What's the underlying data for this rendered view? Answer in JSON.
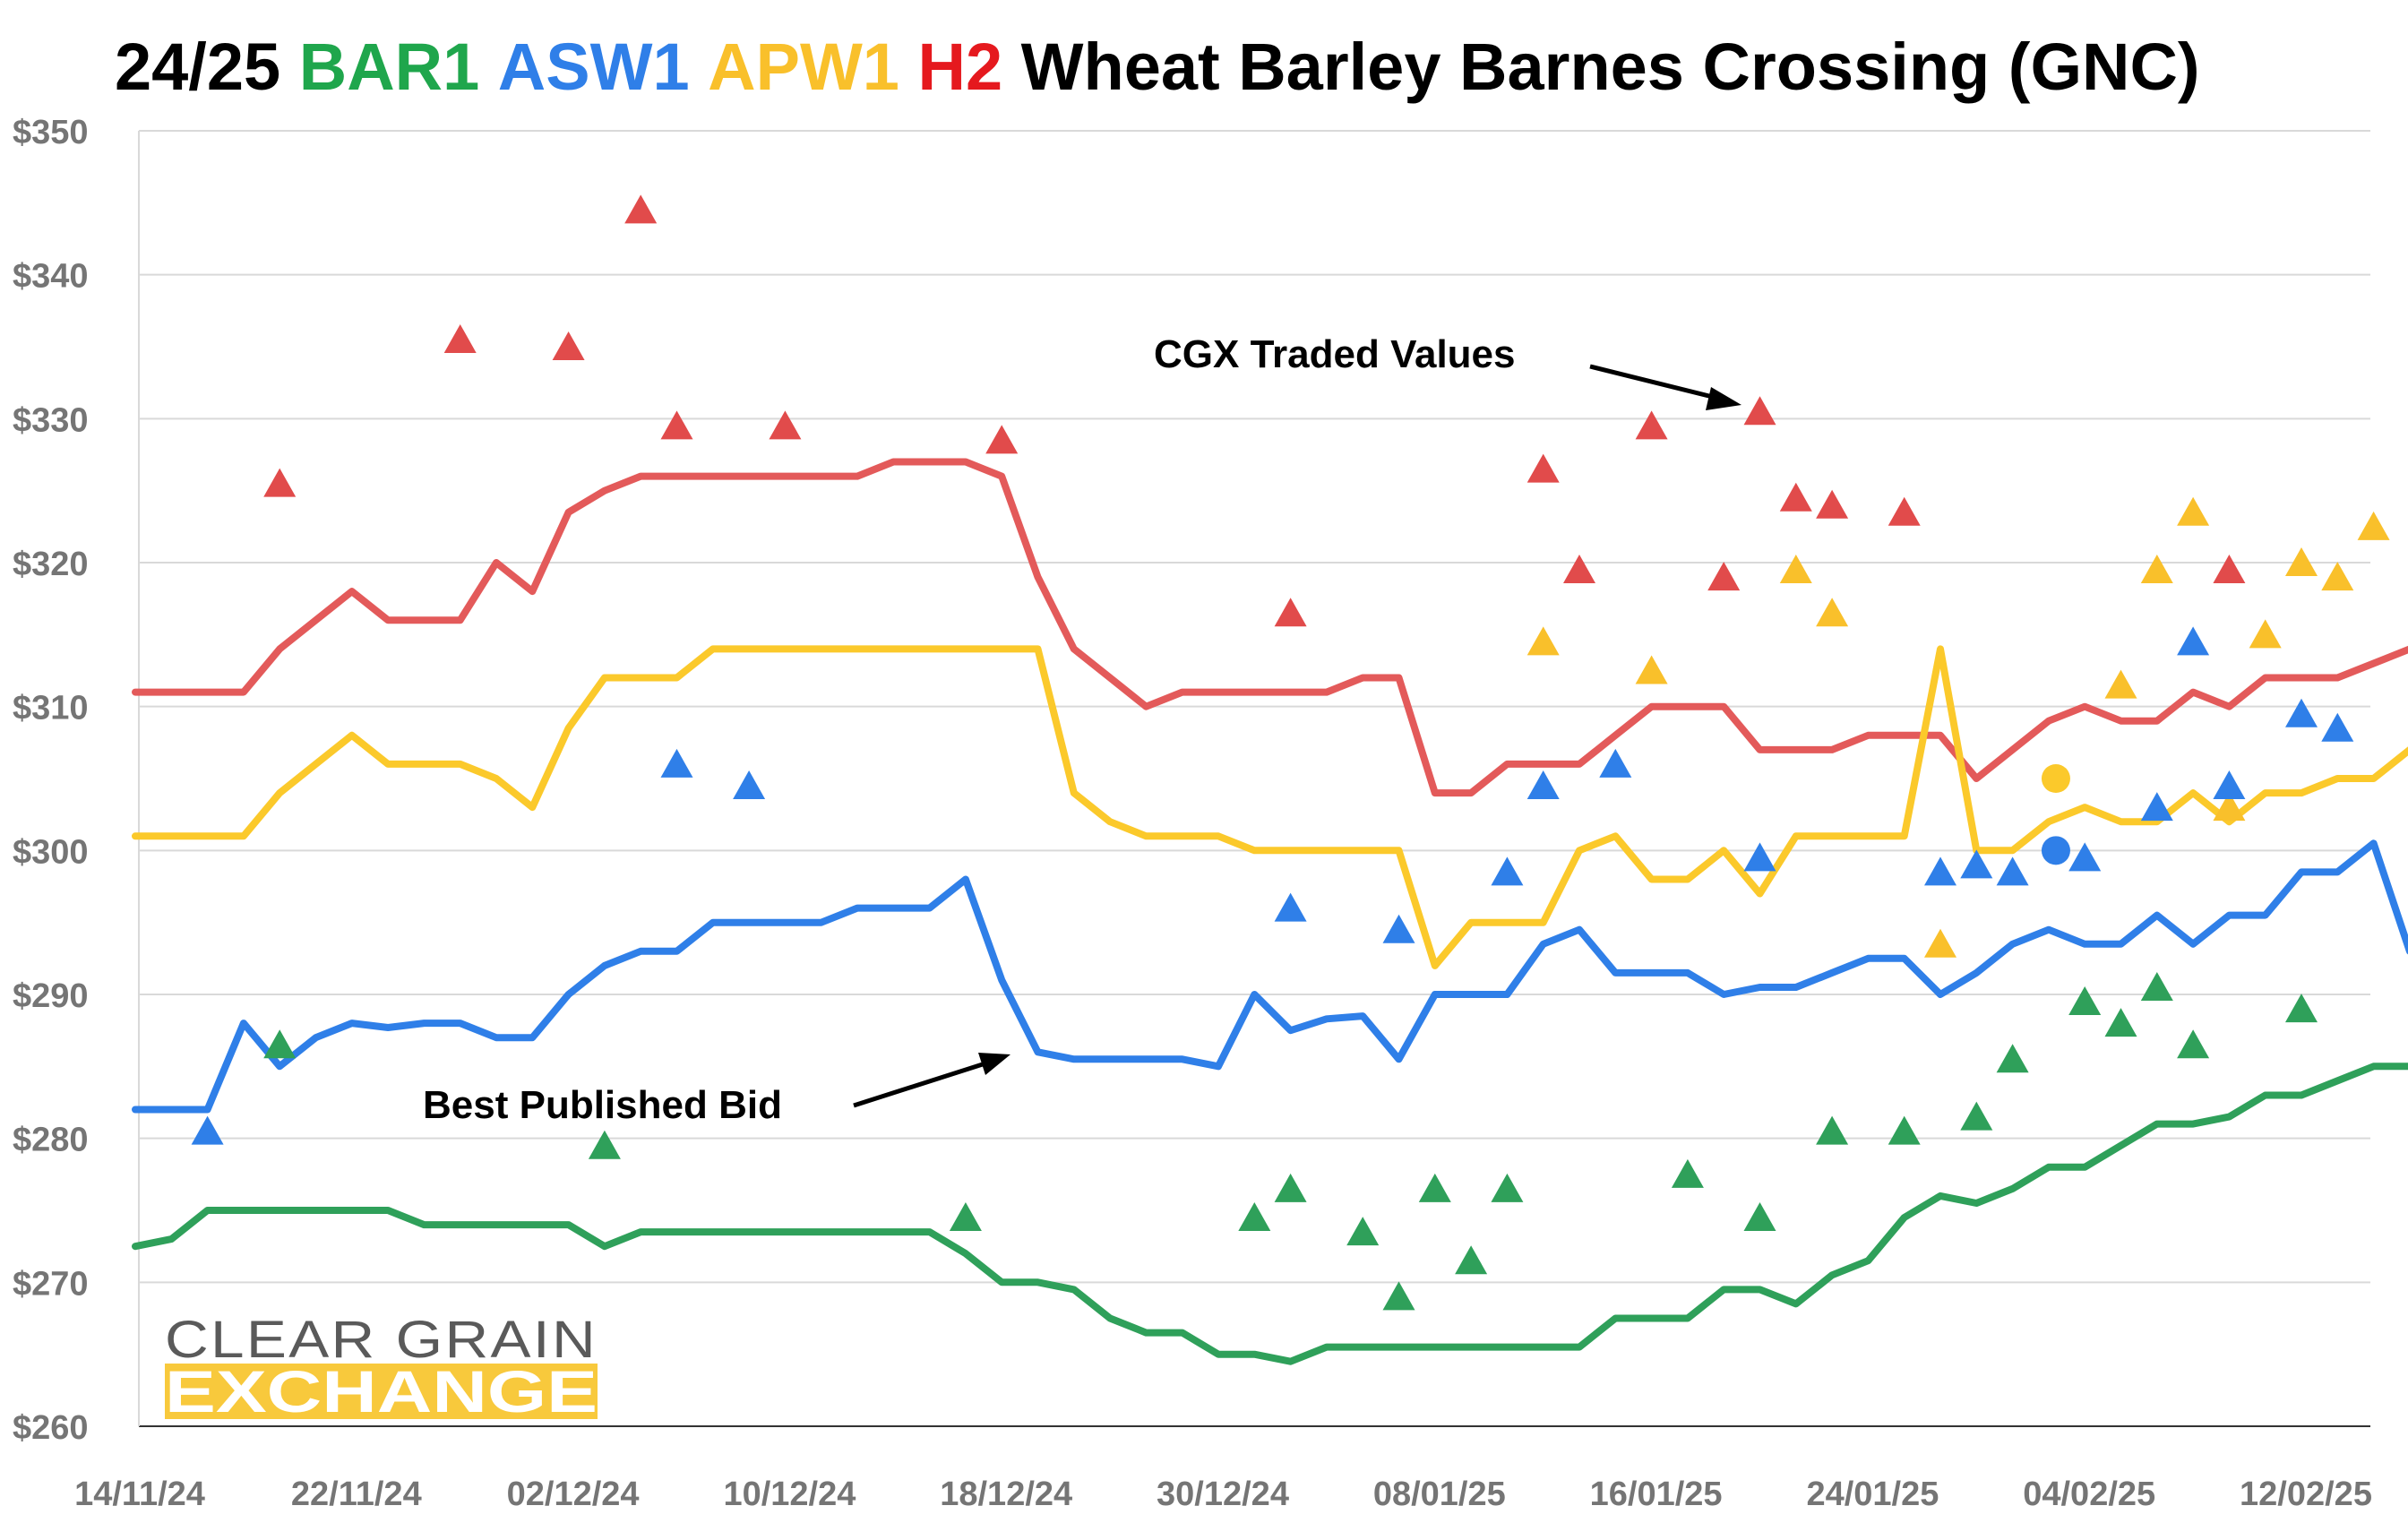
{
  "chart_data": {
    "type": "line",
    "title_parts": [
      {
        "text": "24/25 ",
        "color": "#000000"
      },
      {
        "text": "BAR1 ",
        "color": "#1fa64c"
      },
      {
        "text": "ASW1 ",
        "color": "#2f7fe8"
      },
      {
        "text": "APW1 ",
        "color": "#f9c02b"
      },
      {
        "text": "H2 ",
        "color": "#e5191e"
      },
      {
        "text": "Wheat Barley Barnes Crossing (GNC)",
        "color": "#000000"
      }
    ],
    "y_axis": {
      "min": 260,
      "max": 350,
      "step": 10,
      "tick_labels": [
        "$260",
        "$270",
        "$280",
        "$290",
        "$300",
        "$310",
        "$320",
        "$330",
        "$340",
        "$350"
      ],
      "grid": true
    },
    "x_axis": {
      "start": "14/11/24",
      "end": "14/02/25",
      "tick_labels": [
        "14/11/24",
        "22/11/24",
        "02/12/24",
        "10/12/24",
        "18/12/24",
        "30/12/24",
        "08/01/25",
        "16/01/25",
        "24/01/25",
        "04/02/25",
        "12/02/25"
      ],
      "tick_positions": [
        0,
        6,
        12,
        18,
        24,
        30,
        36,
        42,
        48,
        54,
        60
      ]
    },
    "series": [
      {
        "name": "H2",
        "color": "#e35a5a",
        "values": [
          311,
          311,
          311,
          311,
          314,
          316,
          318,
          316,
          316,
          316,
          320,
          318,
          323.5,
          325,
          326,
          326,
          326,
          326,
          326,
          326,
          326,
          327,
          327,
          327,
          326,
          319,
          314,
          312,
          310,
          311,
          311,
          311,
          311,
          311,
          312,
          312,
          304,
          304,
          306,
          306,
          306,
          308,
          310,
          310,
          310,
          307,
          307,
          307,
          308,
          308,
          308,
          305,
          307,
          309,
          310,
          309,
          309,
          311,
          310,
          312,
          312,
          312,
          313,
          314,
          313
        ]
      },
      {
        "name": "APW1",
        "color": "#fbc92b",
        "values": [
          301,
          301,
          301,
          301,
          304,
          306,
          308,
          306,
          306,
          306,
          305,
          303,
          308.5,
          312,
          312,
          312,
          314,
          314,
          314,
          314,
          314,
          314,
          314,
          314,
          314,
          314,
          304,
          302,
          301,
          301,
          301,
          300,
          300,
          300,
          300,
          300,
          292,
          295,
          295,
          295,
          300,
          301,
          298,
          298,
          300,
          297,
          301,
          301,
          301,
          301,
          314,
          300,
          300,
          302,
          303,
          302,
          302,
          304,
          302,
          304,
          304,
          305,
          305,
          307,
          303
        ]
      },
      {
        "name": "ASW1",
        "color": "#2f7fe8",
        "values": [
          282,
          282,
          282,
          288,
          285,
          287,
          288,
          287.7,
          288,
          288,
          287,
          287,
          290,
          292,
          293,
          293,
          295,
          295,
          295,
          295,
          296,
          296,
          296,
          298,
          291,
          286,
          285.5,
          285.5,
          285.5,
          285.5,
          285,
          290,
          287.5,
          288.3,
          288.5,
          285.5,
          290,
          290,
          290,
          293.5,
          294.5,
          291.5,
          291.5,
          291.5,
          290,
          290.5,
          290.5,
          291.5,
          292.5,
          292.5,
          290,
          291.5,
          293.5,
          294.5,
          293.5,
          293.5,
          295.5,
          293.5,
          295.5,
          295.5,
          298.5,
          298.5,
          300.5,
          293
        ]
      },
      {
        "name": "BAR1",
        "color": "#2fa05a",
        "values": [
          272.5,
          273,
          275,
          275,
          275,
          275,
          275,
          275,
          274,
          274,
          274,
          274,
          274,
          272.5,
          273.5,
          273.5,
          273.5,
          273.5,
          273.5,
          273.5,
          273.5,
          273.5,
          273.5,
          272,
          270,
          270,
          269.5,
          267.5,
          266.5,
          266.5,
          265,
          265,
          264.5,
          265.5,
          265.5,
          265.5,
          265.5,
          265.5,
          265.5,
          265.5,
          265.5,
          267.5,
          267.5,
          267.5,
          269.5,
          269.5,
          268.5,
          270.5,
          271.5,
          274.5,
          276,
          275.5,
          276.5,
          278,
          278,
          279.5,
          281,
          281,
          281.5,
          283,
          283,
          284,
          285,
          285,
          285
        ]
      }
    ],
    "traded": [
      {
        "grade": "H2",
        "color": "#e14b4b",
        "points": [
          [
            4,
            325.5
          ],
          [
            9,
            335.5
          ],
          [
            12,
            335
          ],
          [
            14,
            344.5
          ],
          [
            15,
            329.5
          ],
          [
            18,
            329.5
          ],
          [
            24,
            328.5
          ],
          [
            32,
            316.5
          ],
          [
            39,
            326.5
          ],
          [
            40,
            319.5
          ],
          [
            42,
            329.5
          ],
          [
            44,
            319
          ],
          [
            45,
            330.5
          ],
          [
            46,
            324.5
          ],
          [
            47,
            324
          ],
          [
            49,
            323.5
          ],
          [
            58,
            319.5
          ]
        ]
      },
      {
        "grade": "APW1",
        "color": "#f9c02b",
        "points": [
          [
            39,
            314.5
          ],
          [
            42,
            312.5
          ],
          [
            46,
            319.5
          ],
          [
            47,
            316.5
          ],
          [
            50,
            293.5
          ],
          [
            55,
            311.5
          ],
          [
            56,
            319.5
          ],
          [
            57,
            323.5
          ],
          [
            58,
            303
          ],
          [
            59,
            315
          ],
          [
            60,
            320
          ],
          [
            61,
            319
          ],
          [
            62,
            322.5
          ]
        ]
      },
      {
        "grade": "ASW1",
        "color": "#2f7fe8",
        "points": [
          [
            2,
            280.5
          ],
          [
            15,
            306
          ],
          [
            17,
            304.5
          ],
          [
            32,
            296
          ],
          [
            35,
            294.5
          ],
          [
            38,
            298.5
          ],
          [
            39,
            304.5
          ],
          [
            41,
            306
          ],
          [
            45,
            299.5
          ],
          [
            50,
            298.5
          ],
          [
            51,
            299
          ],
          [
            52,
            298.5
          ],
          [
            54,
            299.5
          ],
          [
            56,
            303
          ],
          [
            57,
            314.5
          ],
          [
            58,
            304.5
          ],
          [
            60,
            309.5
          ],
          [
            61,
            308.5
          ]
        ]
      },
      {
        "grade": "BAR1",
        "color": "#2fa05a",
        "points": [
          [
            4,
            286.5
          ],
          [
            13,
            279.5
          ],
          [
            23,
            274.5
          ],
          [
            31,
            274.5
          ],
          [
            32,
            276.5
          ],
          [
            34,
            273.5
          ],
          [
            35,
            269
          ],
          [
            36,
            276.5
          ],
          [
            37,
            271.5
          ],
          [
            38,
            276.5
          ],
          [
            43,
            277.5
          ],
          [
            45,
            274.5
          ],
          [
            47,
            280.5
          ],
          [
            49,
            280.5
          ],
          [
            51,
            281.5
          ],
          [
            52,
            285.5
          ],
          [
            54,
            289.5
          ],
          [
            55,
            288
          ],
          [
            56,
            290.5
          ],
          [
            57,
            286.5
          ],
          [
            60,
            289
          ]
        ]
      }
    ],
    "traded_circles": [
      {
        "color": "#fbc92b",
        "x": 53.2,
        "y": 305
      },
      {
        "color": "#2f7fe8",
        "x": 53.2,
        "y": 300
      }
    ],
    "annotations": [
      {
        "text": "CGX Traded Values"
      },
      {
        "text": "Best Published Bid"
      }
    ],
    "logo": {
      "line1": "CLEAR GRAIN",
      "line2": "EXCHANGE",
      "band_color": "#f8c93c"
    }
  }
}
